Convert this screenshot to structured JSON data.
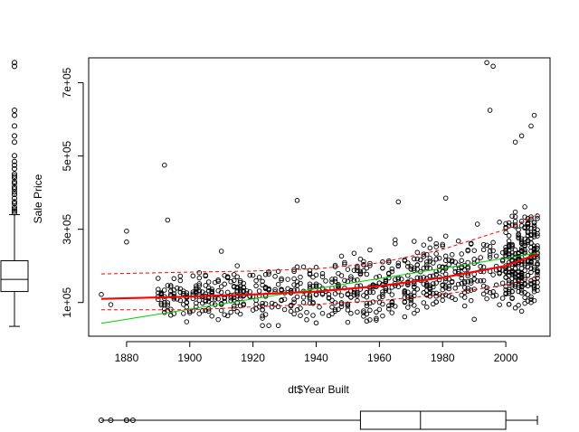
{
  "chart_data": {
    "type": "scatter",
    "title": "",
    "xlabel": "dt$Year Built",
    "ylabel": "Sale Price",
    "xlim": [
      1868,
      2014
    ],
    "ylim": [
      8000,
      768000
    ],
    "x_ticks": [
      1880,
      1900,
      1920,
      1940,
      1960,
      1980,
      2000
    ],
    "x_tick_labels": [
      "1880",
      "1900",
      "1920",
      "1940",
      "1960",
      "1980",
      "2000"
    ],
    "y_ticks": [
      100000,
      300000,
      500000,
      700000
    ],
    "y_tick_labels": [
      "1e+05",
      "3e+05",
      "5e+05",
      "7e+05"
    ],
    "grid": false,
    "legend": "none",
    "point_summary": {
      "approx_count": 1460,
      "x_range": [
        1872,
        2010
      ],
      "y_range": [
        34900,
        755000
      ],
      "bulk_y_range": [
        80000,
        300000
      ],
      "notable_points": [
        {
          "x": 1892,
          "y": 475000
        },
        {
          "x": 1893,
          "y": 325000
        },
        {
          "x": 1880,
          "y": 295000
        },
        {
          "x": 1880,
          "y": 265000
        },
        {
          "x": 1994,
          "y": 755000
        },
        {
          "x": 1996,
          "y": 745000
        },
        {
          "x": 1995,
          "y": 625000
        },
        {
          "x": 2009,
          "y": 611000
        },
        {
          "x": 2008,
          "y": 582000
        },
        {
          "x": 2005,
          "y": 555000
        },
        {
          "x": 2003,
          "y": 538000
        },
        {
          "x": 1934,
          "y": 378500
        },
        {
          "x": 1966,
          "y": 375000
        },
        {
          "x": 1981,
          "y": 385000
        },
        {
          "x": 1910,
          "y": 240000
        },
        {
          "x": 1872,
          "y": 122000
        },
        {
          "x": 1875,
          "y": 94000
        },
        {
          "x": 2003,
          "y": 85000
        }
      ]
    },
    "lines": [
      {
        "style": "solid",
        "color": "#00cc00",
        "role": "linear-fit",
        "points": [
          [
            1872,
            43000
          ],
          [
            2010,
            235000
          ]
        ]
      },
      {
        "style": "solid",
        "color": "#ff0000",
        "role": "smooth-fit",
        "points": [
          [
            1872,
            110000
          ],
          [
            1900,
            116000
          ],
          [
            1920,
            122000
          ],
          [
            1940,
            130000
          ],
          [
            1960,
            145000
          ],
          [
            1980,
            168000
          ],
          [
            2000,
            200000
          ],
          [
            2010,
            232000
          ]
        ]
      },
      {
        "style": "dashed",
        "color": "#ff0000",
        "role": "spread-upper",
        "points": [
          [
            1872,
            178000
          ],
          [
            1900,
            183000
          ],
          [
            1920,
            186000
          ],
          [
            1940,
            192000
          ],
          [
            1960,
            208000
          ],
          [
            1980,
            245000
          ],
          [
            2000,
            300000
          ],
          [
            2010,
            340000
          ]
        ]
      },
      {
        "style": "dashed",
        "color": "#ff0000",
        "role": "spread-lower",
        "points": [
          [
            1872,
            80000
          ],
          [
            1900,
            80000
          ],
          [
            1920,
            88000
          ],
          [
            1940,
            95000
          ],
          [
            1960,
            105000
          ],
          [
            1980,
            122000
          ],
          [
            2000,
            148000
          ],
          [
            2010,
            170000
          ]
        ]
      }
    ],
    "x_boxplot": {
      "whisker_low": 1872,
      "q1": 1954,
      "median": 1973,
      "q3": 2000,
      "whisker_high": 2010,
      "outliers": [
        1872,
        1875,
        1880,
        1880,
        1882
      ]
    },
    "y_boxplot": {
      "whisker_low": 34900,
      "q1": 129975,
      "median": 163000,
      "q3": 214000,
      "whisker_high": 340000,
      "outliers": [
        345000,
        350000,
        355000,
        360000,
        370000,
        375000,
        385000,
        395000,
        402000,
        410000,
        415000,
        425000,
        430000,
        440000,
        445000,
        451000,
        465000,
        475000,
        485000,
        501000,
        538000,
        555000,
        582000,
        611000,
        625000,
        745000,
        755000
      ]
    }
  }
}
